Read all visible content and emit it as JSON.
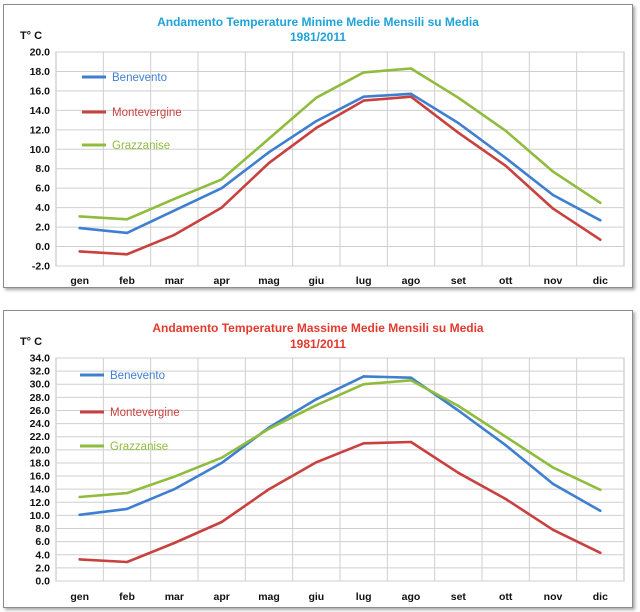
{
  "chart_data": [
    {
      "type": "line",
      "title": "Andamento Temperature Minime Medie Mensili su Media",
      "subtitle": "1981/2011",
      "title_color": "#1fa3d8",
      "ylabel": "T° C",
      "ylim": [
        -2.0,
        20.0
      ],
      "ystep": 2.0,
      "grid": true,
      "legend_position": "left",
      "categories": [
        "gen",
        "feb",
        "mar",
        "apr",
        "mag",
        "giu",
        "lug",
        "ago",
        "set",
        "ott",
        "nov",
        "dic"
      ],
      "series": [
        {
          "name": "Benevento",
          "color": "#3f7fd0",
          "values": [
            1.9,
            1.4,
            3.7,
            6.0,
            9.7,
            12.9,
            15.4,
            15.7,
            12.7,
            9.1,
            5.3,
            2.7
          ]
        },
        {
          "name": "Montevergine",
          "color": "#c8413f",
          "values": [
            -0.5,
            -0.8,
            1.2,
            4.0,
            8.6,
            12.2,
            15.0,
            15.4,
            11.7,
            8.3,
            3.9,
            0.7
          ]
        },
        {
          "name": "Grazzanise",
          "color": "#8fbc3c",
          "values": [
            3.1,
            2.8,
            4.9,
            6.9,
            11.1,
            15.3,
            17.9,
            18.3,
            15.3,
            11.9,
            7.7,
            4.5
          ]
        }
      ]
    },
    {
      "type": "line",
      "title": "Andamento Temperature Massime Medie Mensili su Media",
      "subtitle": "1981/2011",
      "title_color": "#e23a2e",
      "ylabel": "T° C",
      "ylim": [
        0.0,
        34.0
      ],
      "ystep": 2.0,
      "grid": true,
      "legend_position": "left",
      "categories": [
        "gen",
        "feb",
        "mar",
        "apr",
        "mag",
        "giu",
        "lug",
        "ago",
        "set",
        "ott",
        "nov",
        "dic"
      ],
      "series": [
        {
          "name": "Benevento",
          "color": "#3f7fd0",
          "values": [
            10.1,
            11.0,
            14.0,
            18.0,
            23.4,
            27.7,
            31.2,
            31.0,
            26.0,
            20.7,
            14.8,
            10.7
          ]
        },
        {
          "name": "Montevergine",
          "color": "#c8413f",
          "values": [
            3.3,
            2.9,
            5.8,
            9.0,
            14.0,
            18.1,
            21.0,
            21.2,
            16.5,
            12.5,
            7.8,
            4.3
          ]
        },
        {
          "name": "Grazzanise",
          "color": "#8fbc3c",
          "values": [
            12.8,
            13.4,
            15.9,
            18.8,
            23.2,
            26.8,
            30.0,
            30.6,
            26.7,
            22.0,
            17.3,
            13.9
          ]
        }
      ]
    }
  ]
}
